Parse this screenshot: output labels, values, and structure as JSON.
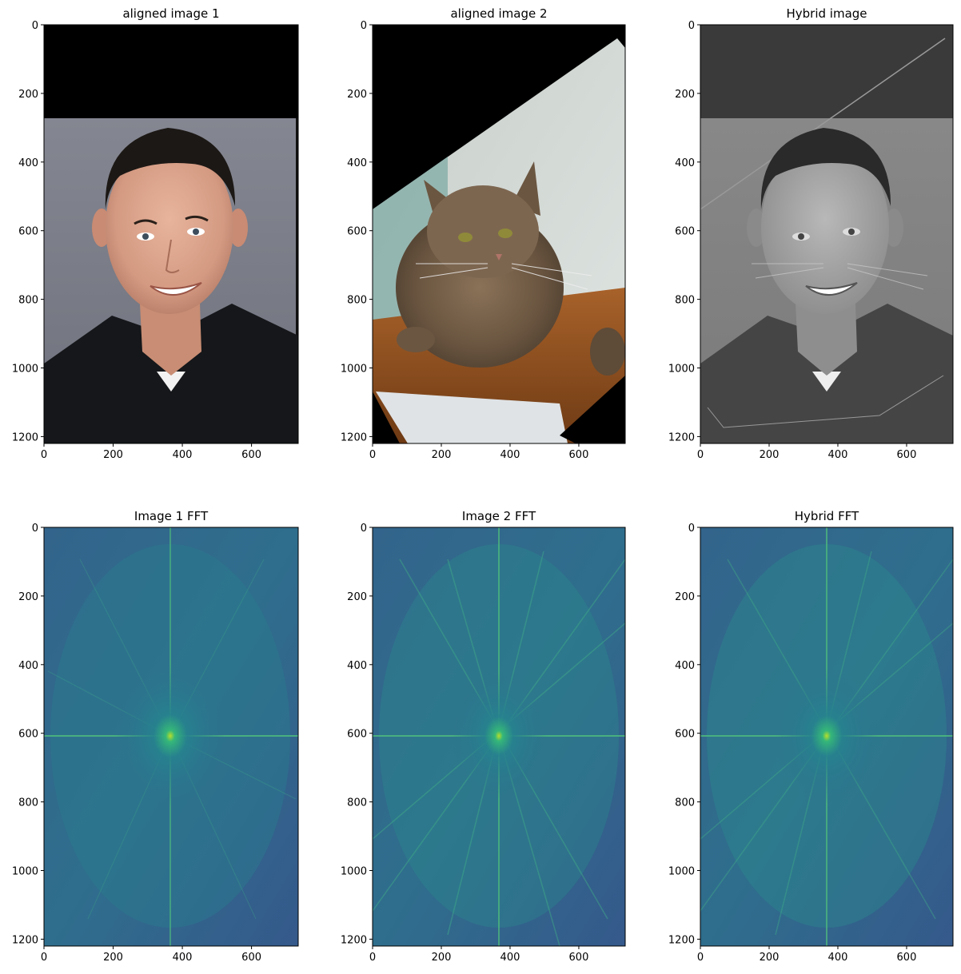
{
  "chart_data": [
    {
      "type": "image",
      "title": "aligned image 1",
      "image_content": "portrait photo of smiling man with dark hair in black collared shirt on grey background; black band across the top",
      "x_ticks": [
        0,
        200,
        400,
        600
      ],
      "y_ticks": [
        0,
        200,
        400,
        600,
        800,
        1000,
        1200
      ],
      "xlim": [
        0,
        735
      ],
      "ylim": [
        1220,
        0
      ]
    },
    {
      "type": "image",
      "title": "aligned image 2",
      "image_content": "rotated photo of long-haired tabby cat resting paws on a wooden shelf; black triangular corner at top-left",
      "x_ticks": [
        0,
        200,
        400,
        600
      ],
      "y_ticks": [
        0,
        200,
        400,
        600,
        800,
        1000,
        1200
      ],
      "xlim": [
        0,
        735
      ],
      "ylim": [
        1220,
        0
      ]
    },
    {
      "type": "image",
      "title": "Hybrid image",
      "image_content": "grayscale hybrid of the man portrait with faint high-frequency cat whiskers and edges",
      "x_ticks": [
        0,
        200,
        400,
        600
      ],
      "y_ticks": [
        0,
        200,
        400,
        600,
        800,
        1000,
        1200
      ],
      "xlim": [
        0,
        735
      ],
      "ylim": [
        1220,
        0
      ]
    },
    {
      "type": "heatmap",
      "title": "Image 1 FFT",
      "image_content": "log-magnitude spectrum, viridis colormap, bright centre near (368, 608) with horizontal and vertical streaks",
      "x_ticks": [
        0,
        200,
        400,
        600
      ],
      "y_ticks": [
        0,
        200,
        400,
        600,
        800,
        1000,
        1200
      ],
      "xlim": [
        0,
        735
      ],
      "ylim": [
        1220,
        0
      ]
    },
    {
      "type": "heatmap",
      "title": "Image 2 FFT",
      "image_content": "log-magnitude spectrum, viridis colormap, bright centre with diagonal streaks from rotation",
      "x_ticks": [
        0,
        200,
        400,
        600
      ],
      "y_ticks": [
        0,
        200,
        400,
        600,
        800,
        1000,
        1200
      ],
      "xlim": [
        0,
        735
      ],
      "ylim": [
        1220,
        0
      ]
    },
    {
      "type": "heatmap",
      "title": "Hybrid FFT",
      "image_content": "log-magnitude spectrum, viridis colormap, combination of both spectra",
      "x_ticks": [
        0,
        200,
        400,
        600
      ],
      "y_ticks": [
        0,
        200,
        400,
        600,
        800,
        1000,
        1200
      ],
      "xlim": [
        0,
        735
      ],
      "ylim": [
        1220,
        0
      ]
    }
  ]
}
